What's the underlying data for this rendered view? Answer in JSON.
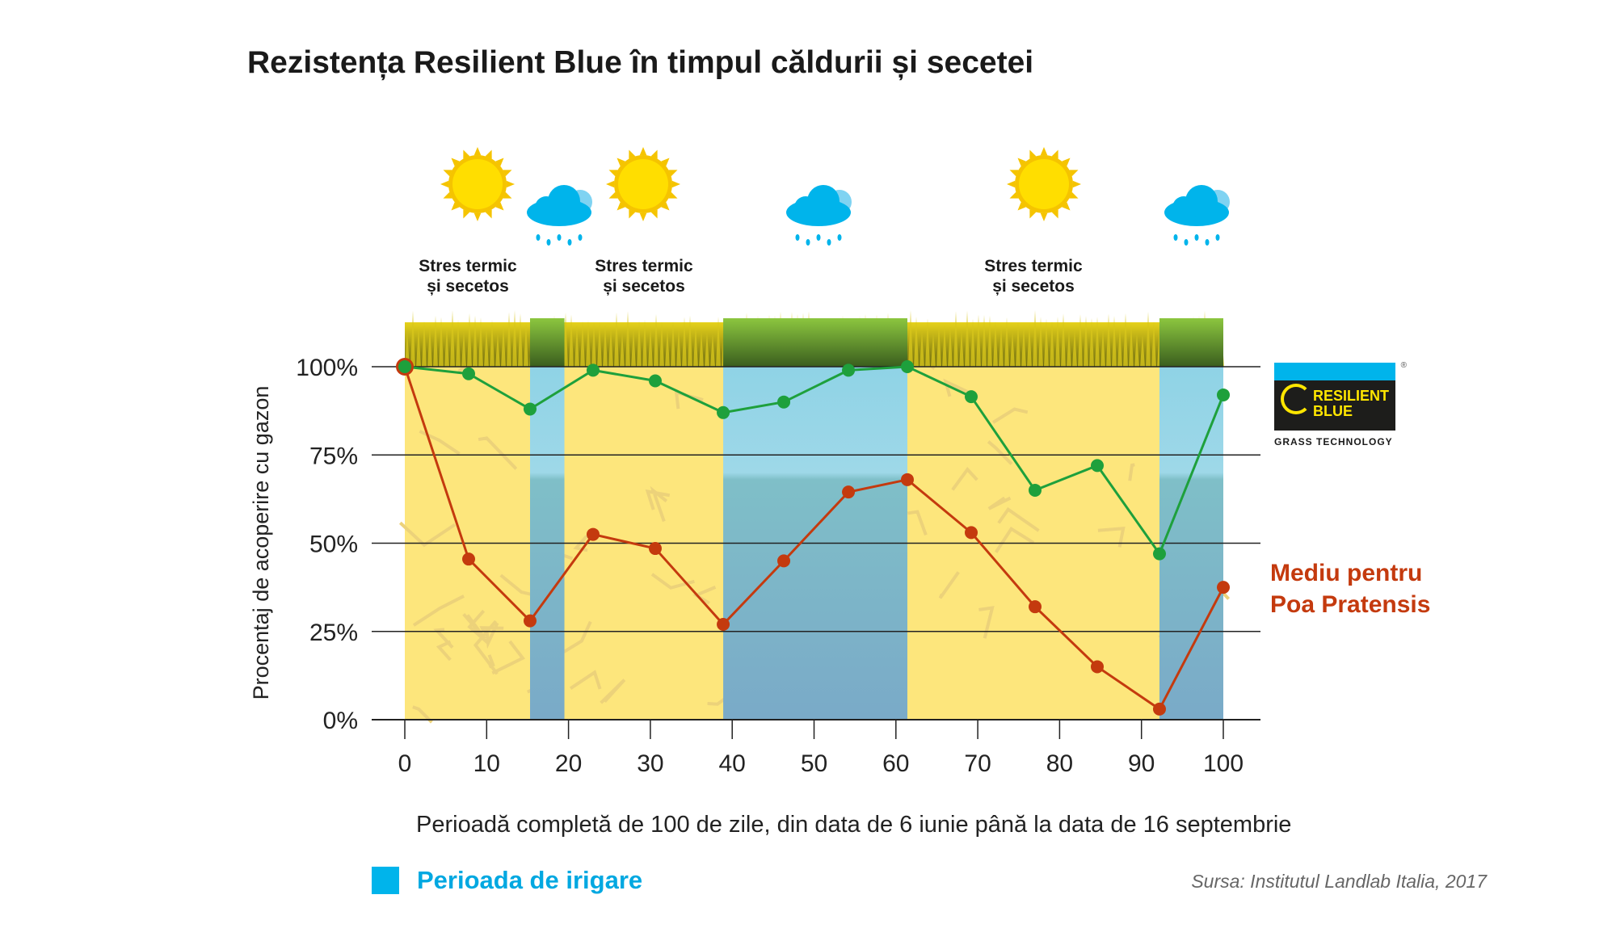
{
  "title": "Rezistența Resilient Blue în timpul căldurii și secetei",
  "annotations": {
    "stres_line1": "Stres termic",
    "stres_line2": "și secetos",
    "weather_icons": [
      "sun-icon",
      "rain-cloud-icon",
      "sun-icon",
      "rain-cloud-icon",
      "sun-icon",
      "rain-cloud-icon"
    ]
  },
  "logo": {
    "line1": "RESILIENT",
    "line2": "BLUE",
    "tagline": "GRASS TECHNOLOGY",
    "reg": "®"
  },
  "red_series_label": [
    "Mediu pentru",
    "Poa Pratensis"
  ],
  "legend": {
    "label": "Perioada de irigare",
    "color": "#00b4eb"
  },
  "source": "Sursa: Institutul Landlab Italia, 2017",
  "chart_data": {
    "type": "line",
    "ylabel": "Procentaj de acoperire cu gazon",
    "xlabel": "Perioadă completă de 100 de zile, din data de 6 iunie până la data de 16 septembrie",
    "xlim": [
      0,
      100
    ],
    "ylim": [
      0,
      100
    ],
    "xticks": [
      0,
      10,
      20,
      30,
      40,
      50,
      60,
      70,
      80,
      90,
      100
    ],
    "yticks": [
      0,
      25,
      50,
      75,
      100
    ],
    "ytick_labels": [
      "0%",
      "25%",
      "50%",
      "75%",
      "100%"
    ],
    "grid": "horizontal",
    "irrigation_periods": [
      [
        15.3,
        19.5
      ],
      [
        38.9,
        61.4
      ],
      [
        92.2,
        100
      ]
    ],
    "series": [
      {
        "color": "#1ea03c",
        "x": [
          0,
          7.8,
          15.3,
          23,
          30.6,
          38.9,
          46.3,
          54.2,
          61.4,
          69.2,
          77,
          84.6,
          92.2,
          100
        ],
        "y": [
          100,
          98,
          88,
          99,
          96,
          87,
          90,
          99,
          100,
          91.5,
          65,
          72,
          47,
          92
        ]
      },
      {
        "name": "Mediu pentru Poa Pratensis",
        "color": "#c43a0e",
        "x": [
          0,
          7.8,
          15.3,
          23,
          30.6,
          38.9,
          46.3,
          54.2,
          61.4,
          69.2,
          77,
          84.6,
          92.2,
          100
        ],
        "y": [
          100,
          45.5,
          28,
          52.5,
          48.5,
          27,
          45,
          64.5,
          68,
          53,
          32,
          15,
          3,
          37.5
        ]
      }
    ]
  }
}
